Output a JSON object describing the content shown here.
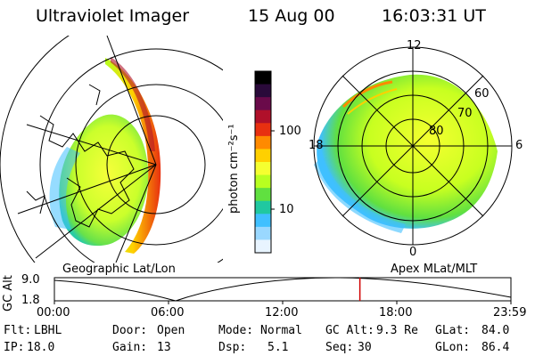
{
  "header": {
    "instrument": "Ultraviolet Imager",
    "date": "15 Aug 00",
    "time": "16:03:31 UT"
  },
  "left_panel": {
    "projection_label": "Geographic Lat/Lon"
  },
  "colorbar": {
    "unit_label": "photon cm⁻²s⁻¹",
    "ticks": [
      "100",
      "10"
    ],
    "colors": [
      "#000000",
      "#2a0a3a",
      "#6a0a4a",
      "#b0102a",
      "#e83010",
      "#ff8a00",
      "#ffd000",
      "#f5ff30",
      "#b8ff20",
      "#60e040",
      "#20c8a0",
      "#40c0ff",
      "#9ad8ff",
      "#e8f4ff"
    ]
  },
  "right_panel": {
    "projection_label": "Apex MLat/MLT",
    "mlt_labels": {
      "top": "12",
      "right": "6",
      "bottom": "0",
      "left": "18"
    },
    "lat_labels": [
      "60",
      "70",
      "80"
    ]
  },
  "altitude_plot": {
    "ylabel": "GC Alt",
    "yticks": [
      "9.0",
      "1.8"
    ],
    "xticks": [
      "00:00",
      "06:00",
      "12:00",
      "18:00",
      "23:59"
    ],
    "current_marker_hour": 16.06
  },
  "info": {
    "flt_label": "Flt:",
    "flt_value": "LBHL",
    "ip_label": "IP:",
    "ip_value": "18.0",
    "door_label": "Door:",
    "door_value": "Open",
    "gain_label": "Gain:",
    "gain_value": "13",
    "mode_label": "Mode:",
    "mode_value": "Normal",
    "dsp_label": "Dsp:",
    "dsp_value": "5.1",
    "gcalt_label": "GC Alt:",
    "gcalt_value": "9.3 Re",
    "seq_label": "Seq:",
    "seq_value": "30",
    "glat_label": "GLat:",
    "glat_value": "84.0",
    "glon_label": "GLon:",
    "glon_value": "86.4"
  }
}
